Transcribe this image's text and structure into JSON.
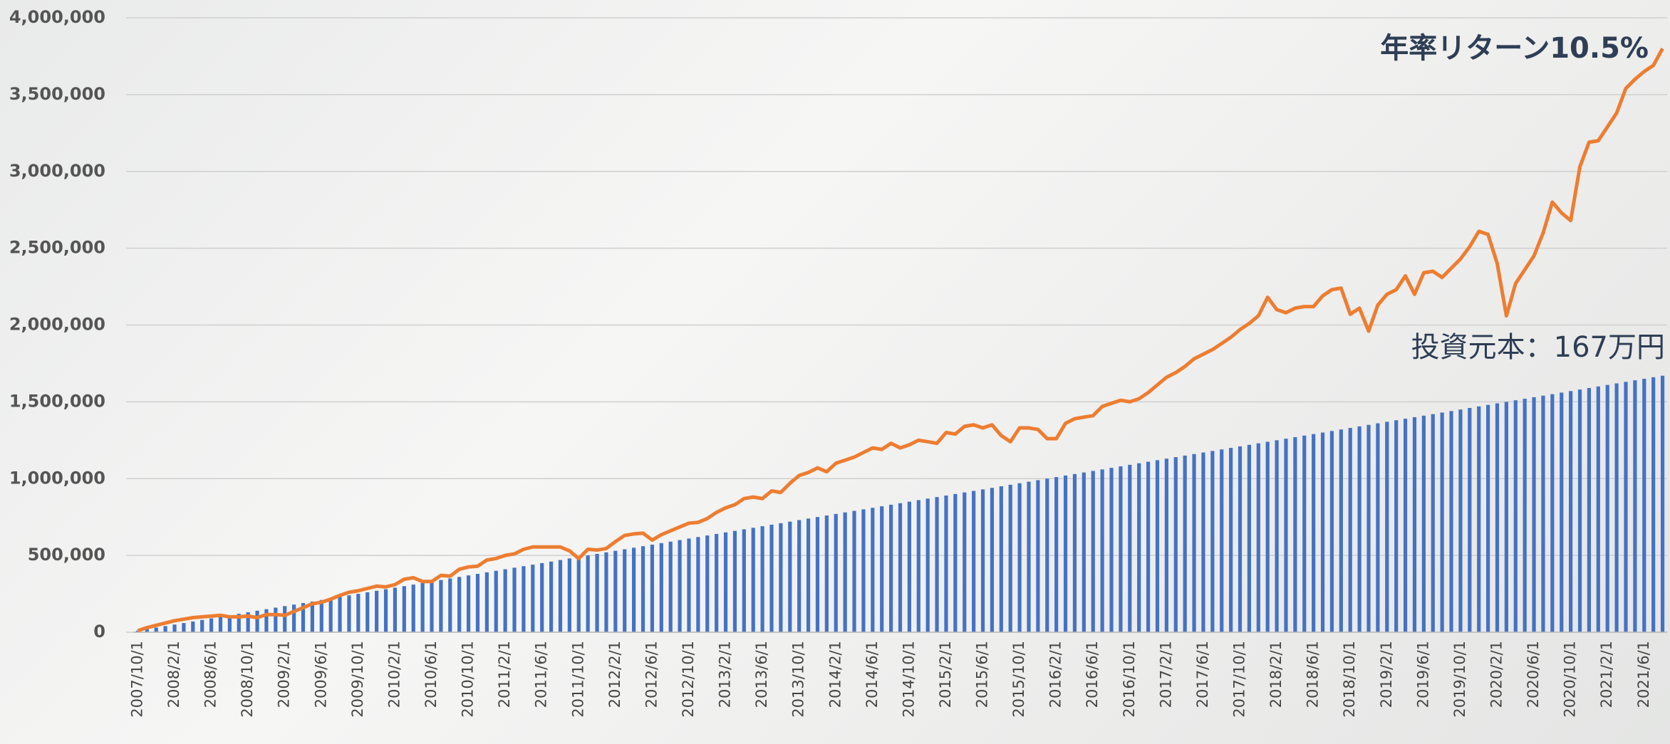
{
  "chart_data": {
    "type": "bar",
    "annotations": [
      "年率リターン10.5%",
      "投資元本：167万円"
    ],
    "categories": [
      "2007/10/1",
      null,
      null,
      null,
      "2008/2/1",
      null,
      null,
      null,
      "2008/6/1",
      null,
      null,
      null,
      "2008/10/1",
      null,
      null,
      null,
      "2009/2/1",
      null,
      null,
      null,
      "2009/6/1",
      null,
      null,
      null,
      "2009/10/1",
      null,
      null,
      null,
      "2010/2/1",
      null,
      null,
      null,
      "2010/6/1",
      null,
      null,
      null,
      "2010/10/1",
      null,
      null,
      null,
      "2011/2/1",
      null,
      null,
      null,
      "2011/6/1",
      null,
      null,
      null,
      "2011/10/1",
      null,
      null,
      null,
      "2012/2/1",
      null,
      null,
      null,
      "2012/6/1",
      null,
      null,
      null,
      "2012/10/1",
      null,
      null,
      null,
      "2013/2/1",
      null,
      null,
      null,
      "2013/6/1",
      null,
      null,
      null,
      "2013/10/1",
      null,
      null,
      null,
      "2014/2/1",
      null,
      null,
      null,
      "2014/6/1",
      null,
      null,
      null,
      "2014/10/1",
      null,
      null,
      null,
      "2015/2/1",
      null,
      null,
      null,
      "2015/6/1",
      null,
      null,
      null,
      "2015/10/1",
      null,
      null,
      null,
      "2016/2/1",
      null,
      null,
      null,
      "2016/6/1",
      null,
      null,
      null,
      "2016/10/1",
      null,
      null,
      null,
      "2017/2/1",
      null,
      null,
      null,
      "2017/6/1",
      null,
      null,
      null,
      "2017/10/1",
      null,
      null,
      null,
      "2018/2/1",
      null,
      null,
      null,
      "2018/6/1",
      null,
      null,
      null,
      "2018/10/1",
      null,
      null,
      null,
      "2019/2/1",
      null,
      null,
      null,
      "2019/6/1",
      null,
      null,
      null,
      "2019/10/1",
      null,
      null,
      null,
      "2020/2/1",
      null,
      null,
      null,
      "2020/6/1",
      null,
      null,
      null,
      "2020/10/1",
      null,
      null,
      null,
      "2021/2/1",
      null,
      null,
      null,
      "2021/6/1",
      null,
      null
    ],
    "series": [
      {
        "type": "bar",
        "color": "#4472c4",
        "values": [
          10000,
          20000,
          30000,
          40000,
          50000,
          60000,
          70000,
          80000,
          90000,
          100000,
          110000,
          120000,
          130000,
          140000,
          150000,
          160000,
          170000,
          180000,
          190000,
          200000,
          210000,
          220000,
          230000,
          240000,
          250000,
          260000,
          270000,
          280000,
          290000,
          300000,
          310000,
          320000,
          330000,
          340000,
          350000,
          360000,
          370000,
          380000,
          390000,
          400000,
          410000,
          420000,
          430000,
          440000,
          450000,
          460000,
          470000,
          480000,
          490000,
          500000,
          510000,
          520000,
          530000,
          540000,
          550000,
          560000,
          570000,
          580000,
          590000,
          600000,
          610000,
          620000,
          630000,
          640000,
          650000,
          660000,
          670000,
          680000,
          690000,
          700000,
          710000,
          720000,
          730000,
          740000,
          750000,
          760000,
          770000,
          780000,
          790000,
          800000,
          810000,
          820000,
          830000,
          840000,
          850000,
          860000,
          870000,
          880000,
          890000,
          900000,
          910000,
          920000,
          930000,
          940000,
          950000,
          960000,
          970000,
          980000,
          990000,
          1000000,
          1010000,
          1020000,
          1030000,
          1040000,
          1050000,
          1060000,
          1070000,
          1080000,
          1090000,
          1100000,
          1110000,
          1120000,
          1130000,
          1140000,
          1150000,
          1160000,
          1170000,
          1180000,
          1190000,
          1200000,
          1210000,
          1220000,
          1230000,
          1240000,
          1250000,
          1260000,
          1270000,
          1280000,
          1290000,
          1300000,
          1310000,
          1320000,
          1330000,
          1340000,
          1350000,
          1360000,
          1370000,
          1380000,
          1390000,
          1400000,
          1410000,
          1420000,
          1430000,
          1440000,
          1450000,
          1460000,
          1470000,
          1480000,
          1490000,
          1500000,
          1510000,
          1520000,
          1530000,
          1540000,
          1550000,
          1560000,
          1570000,
          1580000,
          1590000,
          1600000,
          1610000,
          1620000,
          1630000,
          1640000,
          1650000,
          1660000,
          1670000
        ]
      },
      {
        "type": "line",
        "color": "#ed7d31",
        "values": [
          10000,
          30000,
          45000,
          60000,
          75000,
          85000,
          95000,
          100000,
          105000,
          110000,
          100000,
          100000,
          105000,
          95000,
          115000,
          115000,
          110000,
          135000,
          160000,
          185000,
          195000,
          215000,
          240000,
          260000,
          270000,
          285000,
          300000,
          295000,
          310000,
          345000,
          355000,
          330000,
          330000,
          370000,
          365000,
          410000,
          425000,
          430000,
          470000,
          480000,
          500000,
          510000,
          540000,
          555000,
          555000,
          555000,
          555000,
          530000,
          480000,
          540000,
          535000,
          545000,
          590000,
          630000,
          640000,
          645000,
          600000,
          635000,
          660000,
          685000,
          710000,
          715000,
          740000,
          780000,
          810000,
          830000,
          870000,
          880000,
          870000,
          920000,
          910000,
          970000,
          1020000,
          1040000,
          1070000,
          1045000,
          1100000,
          1120000,
          1140000,
          1170000,
          1200000,
          1190000,
          1230000,
          1200000,
          1220000,
          1250000,
          1240000,
          1230000,
          1300000,
          1290000,
          1340000,
          1350000,
          1330000,
          1350000,
          1280000,
          1240000,
          1330000,
          1330000,
          1320000,
          1260000,
          1260000,
          1360000,
          1390000,
          1400000,
          1410000,
          1470000,
          1490000,
          1510000,
          1500000,
          1520000,
          1560000,
          1610000,
          1660000,
          1690000,
          1730000,
          1780000,
          1810000,
          1840000,
          1880000,
          1920000,
          1970000,
          2010000,
          2060000,
          2180000,
          2100000,
          2080000,
          2110000,
          2120000,
          2120000,
          2190000,
          2230000,
          2240000,
          2070000,
          2110000,
          1960000,
          2130000,
          2200000,
          2230000,
          2320000,
          2200000,
          2340000,
          2350000,
          2310000,
          2370000,
          2430000,
          2510000,
          2610000,
          2590000,
          2400000,
          2060000,
          2270000,
          2360000,
          2450000,
          2600000,
          2800000,
          2730000,
          2680000,
          3030000,
          3190000,
          3200000,
          3290000,
          3380000,
          3540000,
          3600000,
          3650000,
          3690000,
          3800000
        ]
      }
    ],
    "ylim": [
      0,
      4000000
    ],
    "yticks": [
      0,
      {
        "value": 500000,
        "label": "500,000"
      },
      {
        "value": 1000000,
        "label": "1,000,000"
      },
      {
        "value": 1500000,
        "label": "1,500,000"
      },
      {
        "value": 2000000,
        "label": "2,000,000"
      },
      {
        "value": 2500000,
        "label": "2,500,000"
      },
      {
        "value": 3000000,
        "label": "3,000,000"
      },
      {
        "value": 3500000,
        "label": "3,500,000"
      },
      {
        "value": 4000000,
        "label": "4,000,000"
      }
    ],
    "grid": true
  }
}
